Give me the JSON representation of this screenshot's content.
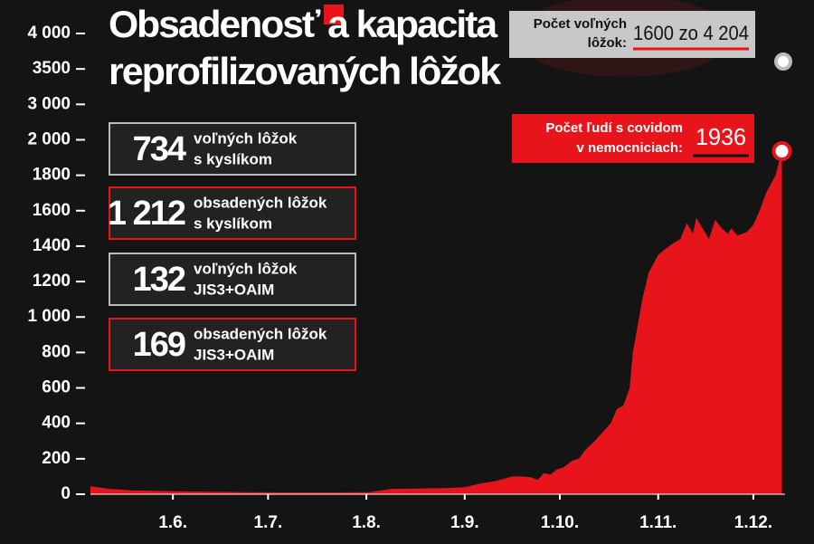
{
  "chart_data": {
    "type": "area",
    "title": [
      "Obsadenosť a kapacita",
      "reprofilizovaných lôžok"
    ],
    "color": "#e8141b",
    "x": [
      127,
      133,
      140,
      150,
      160,
      175,
      190,
      205,
      215,
      222,
      230,
      240,
      245,
      250,
      255,
      260,
      263,
      266,
      268,
      270,
      272,
      274,
      276,
      279,
      281,
      283,
      286,
      288,
      291,
      293,
      295,
      297,
      298,
      300,
      301,
      303,
      306,
      308,
      311,
      313,
      315,
      317,
      318,
      320,
      322,
      324,
      326,
      328,
      329,
      331,
      334,
      336,
      338,
      340,
      343,
      345
    ],
    "values": [
      45,
      30,
      22,
      18,
      15,
      12,
      10,
      10,
      12,
      30,
      32,
      35,
      40,
      60,
      75,
      100,
      100,
      95,
      80,
      120,
      110,
      140,
      150,
      190,
      200,
      250,
      300,
      340,
      400,
      480,
      500,
      600,
      800,
      1000,
      1100,
      1250,
      1350,
      1380,
      1420,
      1440,
      1530,
      1470,
      1560,
      1500,
      1440,
      1550,
      1500,
      1470,
      1500,
      1460,
      1480,
      1520,
      1600,
      1700,
      1800,
      1936
    ],
    "xlim": [
      127,
      346
    ],
    "xticks": [
      {
        "value": 153,
        "label": "1.6."
      },
      {
        "value": 183,
        "label": "1.7."
      },
      {
        "value": 214,
        "label": "1.8."
      },
      {
        "value": 245,
        "label": "1.9."
      },
      {
        "value": 275,
        "label": "1.10."
      },
      {
        "value": 306,
        "label": "1.11."
      },
      {
        "value": 336,
        "label": "1.12."
      }
    ],
    "ylim": [
      0,
      4000
    ],
    "yticks": [
      0,
      200,
      400,
      600,
      800,
      {
        "value": 1000,
        "label": "1 000"
      },
      1200,
      1400,
      1600,
      1800,
      {
        "value": 2000,
        "label": "2 000"
      },
      {
        "value": 3000,
        "label": "3 000"
      },
      3500,
      {
        "value": 4000,
        "label": "4 000"
      }
    ],
    "capacity_box": {
      "label": [
        "Počet voľných",
        "lôžok:"
      ],
      "value": "1600 zo 4 204"
    },
    "covid_box": {
      "label": [
        "Počet ľudí s covidom",
        "v nemocniciach:"
      ],
      "value": "1936"
    },
    "info_boxes": [
      {
        "number": "734",
        "text": [
          "voľných lôžok",
          "s kyslíkom"
        ],
        "kind": "free"
      },
      {
        "number": "1 212",
        "text": [
          "obsadených lôžok",
          "s kyslíkom"
        ],
        "kind": "occupied"
      },
      {
        "number": "132",
        "text": [
          "voľných lôžok",
          "JIS3+OAIM"
        ],
        "kind": "free"
      },
      {
        "number": "169",
        "text": [
          "obsadených lôžok",
          "JIS3+OAIM"
        ],
        "kind": "occupied"
      }
    ]
  }
}
